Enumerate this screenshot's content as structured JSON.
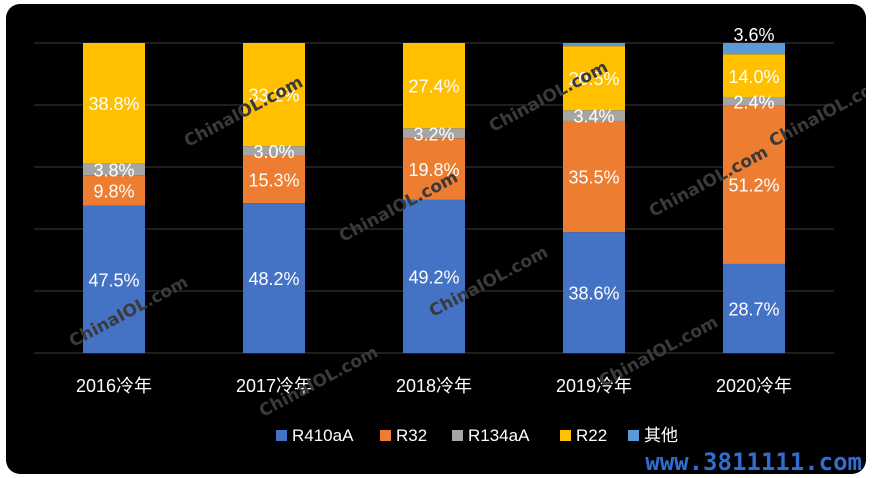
{
  "chart_data": {
    "type": "bar",
    "stacked": true,
    "categories": [
      "2016冷年",
      "2017冷年",
      "2018冷年",
      "2019冷年",
      "2020冷年"
    ],
    "series": [
      {
        "name": "R410aA",
        "color": "#4472c4",
        "values": [
          47.5,
          48.2,
          49.2,
          38.6,
          28.7
        ],
        "labels": [
          "47.5%",
          "48.2%",
          "49.2%",
          "38.6%",
          "28.7%"
        ]
      },
      {
        "name": "R32",
        "color": "#ed7d31",
        "values": [
          9.8,
          15.3,
          19.8,
          35.5,
          51.2
        ],
        "labels": [
          "9.8%",
          "15.3%",
          "19.8%",
          "35.5%",
          "51.2%"
        ]
      },
      {
        "name": "R134aA",
        "color": "#a5a5a5",
        "values": [
          3.8,
          3.0,
          3.2,
          3.4,
          2.4
        ],
        "labels": [
          "3.8%",
          "3.0%",
          "3.2%",
          "3.4%",
          "2.4%"
        ]
      },
      {
        "name": "R22",
        "color": "#ffc000",
        "values": [
          38.8,
          33.2,
          27.4,
          20.5,
          14.0
        ],
        "labels": [
          "38.8%",
          "33.2%",
          "27.4%",
          "20.5%",
          "14.0%"
        ]
      },
      {
        "name": "其他",
        "color": "#5b9bd5",
        "values": [
          0.0,
          0.0,
          0.0,
          1.0,
          3.6
        ],
        "labels": [
          "",
          "",
          "",
          "",
          "3.6%"
        ]
      }
    ],
    "ylim": [
      0,
      100
    ],
    "grid": true,
    "legend_position": "bottom",
    "title": "",
    "xlabel": "",
    "ylabel": ""
  },
  "watermarks": {
    "diagonal_text": "ChinaIOL.com",
    "site": "www.3811111.com"
  }
}
